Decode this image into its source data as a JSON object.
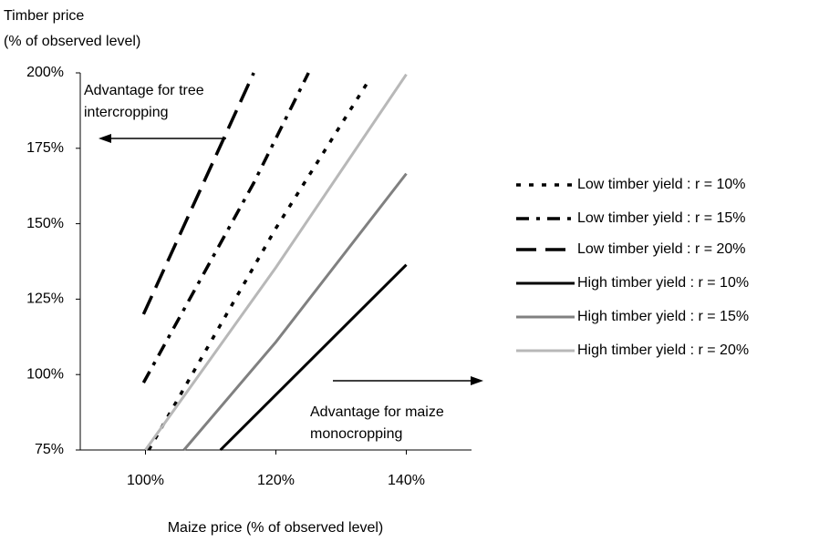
{
  "chart_data": {
    "type": "line",
    "y_label": [
      "Timber price",
      "(% of observed level)"
    ],
    "x_label": "Maize price (% of observed level)",
    "xlim": [
      90,
      150
    ],
    "ylim": [
      75,
      200
    ],
    "xticks": [
      {
        "value": 100,
        "label": "100%"
      },
      {
        "value": 120,
        "label": "120%"
      },
      {
        "value": 140,
        "label": "140%"
      }
    ],
    "yticks": [
      {
        "value": 75,
        "label": "75%"
      },
      {
        "value": 100,
        "label": "100%"
      },
      {
        "value": 125,
        "label": "125%"
      },
      {
        "value": 150,
        "label": "150%"
      },
      {
        "value": 175,
        "label": "175%"
      },
      {
        "value": 200,
        "label": "200%"
      }
    ],
    "annotations": [
      {
        "lines": [
          "Advantage for tree",
          "intercropping"
        ],
        "direction": "left"
      },
      {
        "lines": [
          "Advantage for maize",
          "monocropping"
        ],
        "direction": "right"
      }
    ],
    "series": [
      {
        "name": "Low timber yield : r = 10%",
        "color": "#000000",
        "style": "dotted",
        "x": [
          100.5,
          120,
          134.4
        ],
        "values": [
          75,
          148.5,
          198
        ]
      },
      {
        "name": "Low timber yield : r = 15%",
        "color": "#000000",
        "style": "dashdot",
        "x": [
          99.7,
          116.6,
          125
        ],
        "values": [
          97.3,
          163.5,
          200
        ]
      },
      {
        "name": "Low timber yield : r = 20%",
        "color": "#000000",
        "style": "dashed",
        "x": [
          99.7,
          116.6
        ],
        "values": [
          120,
          200
        ]
      },
      {
        "name": "High timber yield : r = 10%",
        "color": "#000000",
        "style": "solid",
        "x": [
          111.5,
          140
        ],
        "values": [
          75,
          136.4
        ]
      },
      {
        "name": "High timber yield : r = 15%",
        "color": "#808080",
        "style": "solid",
        "x": [
          105.9,
          120,
          140
        ],
        "values": [
          75,
          110.8,
          166.6
        ]
      },
      {
        "name": "High timber yield : r = 20%",
        "color": "#b8b8b8",
        "style": "solid",
        "x": [
          100,
          120,
          140
        ],
        "values": [
          75,
          135.5,
          199.5
        ]
      }
    ]
  }
}
